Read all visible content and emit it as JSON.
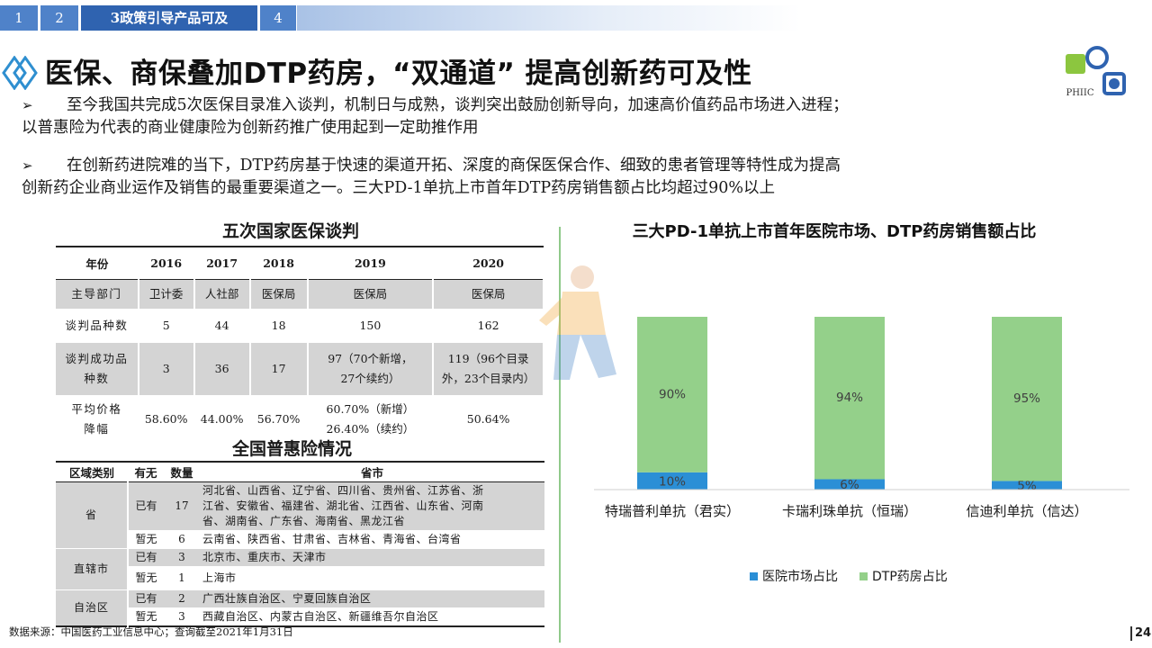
{
  "nav": {
    "tabs": [
      {
        "label": "1",
        "active": false
      },
      {
        "label": "2",
        "active": false
      },
      {
        "label": "3政策引导产品可及",
        "active": true
      },
      {
        "label": "4",
        "active": false
      }
    ]
  },
  "title": "医保、商保叠加DTP药房，“双通道” 提高创新药可及性",
  "logo_text": "PHIIC",
  "bullets": [
    {
      "line1": "至今我国共完成5次医保目录准入谈判，机制日与成熟，谈判突出鼓励创新导向，加速高价值药品市场进入进程；",
      "line2": "以普惠险为代表的商业健康险为创新药推广使用起到一定助推作用"
    },
    {
      "line1": "在创新药进院难的当下，DTP药房基于快速的渠道开拓、深度的商保医保合作、细致的患者管理等特性成为提高",
      "line2": "创新药企业商业运作及销售的最重要渠道之一。三大PD-1单抗上市首年DTP药房销售额占比均超过90%以上"
    }
  ],
  "table1": {
    "title": "五次国家医保谈判",
    "headers": [
      "年份",
      "2016",
      "2017",
      "2018",
      "2019",
      "2020"
    ],
    "rows": [
      {
        "label": "主导部门",
        "cells": [
          "卫计委",
          "人社部",
          "医保局",
          "医保局",
          "医保局"
        ]
      },
      {
        "label": "谈判品种数",
        "cells": [
          "5",
          "44",
          "18",
          "150",
          "162"
        ]
      },
      {
        "label_l1": "谈判成功品",
        "label_l2": "种数",
        "cells": [
          "3",
          "36",
          "17"
        ],
        "c4_l1": "97（70个新增，",
        "c4_l2": "27个续约）",
        "c5_l1": "119（96个目录",
        "c5_l2": "外，23个目录内）"
      },
      {
        "label_l1": "平均价格",
        "label_l2": "降幅",
        "cells": [
          "58.60%",
          "44.00%",
          "56.70%"
        ],
        "c4_l1": "60.70%（新增）",
        "c4_l2": "26.40%（续约）",
        "c5": "50.64%"
      }
    ]
  },
  "table2": {
    "title": "全国普惠险情况",
    "headers": [
      "区域类别",
      "有无",
      "数量",
      "省市"
    ],
    "groups": [
      {
        "region": "省",
        "rows": [
          {
            "status": "已有",
            "count": "17",
            "list_l1": "河北省、山西省、辽宁省、四川省、贵州省、江苏省、浙",
            "list_l2": "江省、安徽省、福建省、湖北省、江西省、山东省、河南",
            "list_l3": "省、湖南省、广东省、海南省、黑龙江省"
          },
          {
            "status": "暂无",
            "count": "6",
            "list": "云南省、陕西省、甘肃省、吉林省、青海省、台湾省"
          }
        ]
      },
      {
        "region": "直辖市",
        "rows": [
          {
            "status": "已有",
            "count": "3",
            "list": "北京市、重庆市、天津市"
          },
          {
            "status": "暂无",
            "count": "1",
            "list": "上海市"
          }
        ]
      },
      {
        "region": "自治区",
        "rows": [
          {
            "status": "已有",
            "count": "2",
            "list": "广西壮族自治区、宁夏回族自治区"
          },
          {
            "status": "暂无",
            "count": "3",
            "list": "西藏自治区、内蒙古自治区、新疆维吾尔自治区"
          }
        ]
      }
    ]
  },
  "chart_data": {
    "type": "bar",
    "stacked": true,
    "title": "三大PD-1单抗上市首年医院市场、DTP药房销售额占比",
    "categories": [
      "特瑞普利单抗（君实）",
      "卡瑞利珠单抗（恒瑞）",
      "信迪利单抗（信达）"
    ],
    "series": [
      {
        "name": "医院市场占比",
        "values": [
          10,
          6,
          5
        ],
        "labels": [
          "10%",
          "6%",
          "5%"
        ],
        "color": "#2b8fd6"
      },
      {
        "name": "DTP药房占比",
        "values": [
          90,
          94,
          95
        ],
        "labels": [
          "90%",
          "94%",
          "95%"
        ],
        "color": "#94d08a"
      }
    ],
    "ylim": [
      0,
      100
    ],
    "grid": false,
    "legend_position": "bottom"
  },
  "source": "数据来源：中国医药工业信息中心；查询截至2021年1月31日",
  "page_number": "24"
}
